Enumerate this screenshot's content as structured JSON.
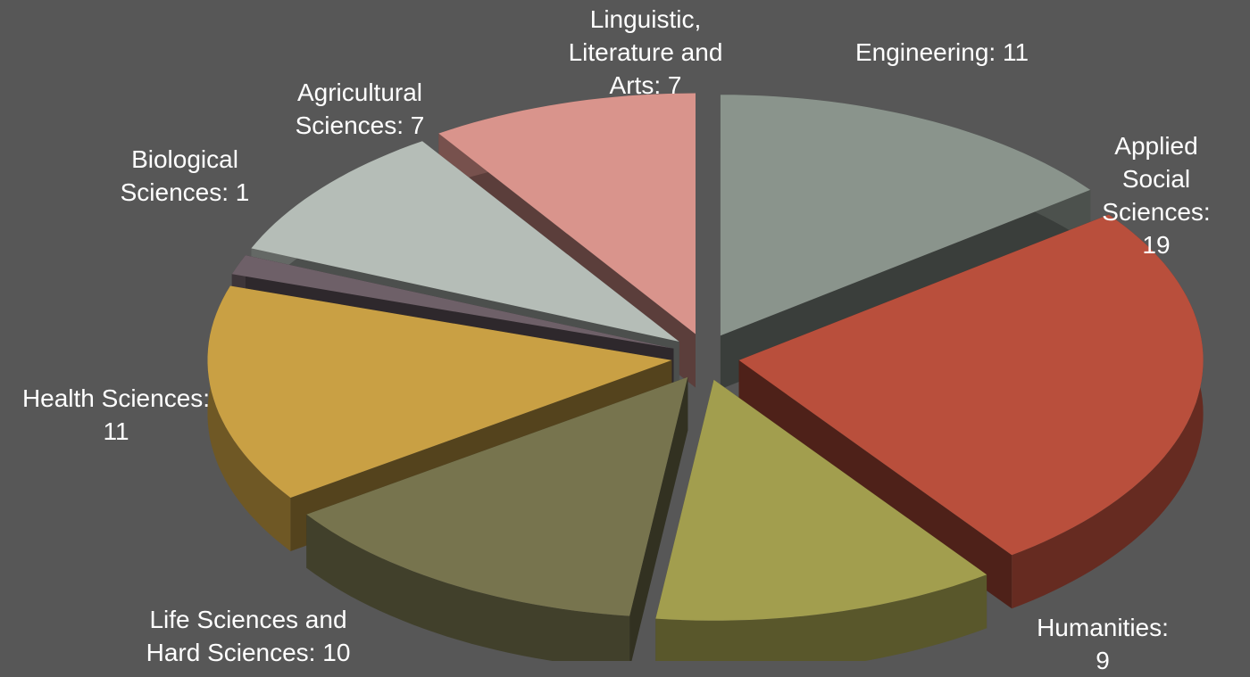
{
  "chart_data": {
    "type": "pie",
    "style": "3d-exploded",
    "values": [
      11,
      19,
      9,
      10,
      11,
      1,
      7,
      7
    ],
    "value_labels": [
      "Engineering: 11",
      "Applied Social\nSciences: 19",
      "Humanities: 9",
      "Life Sciences and\nHard Sciences: 10",
      "Health Sciences:\n11",
      "Biological\nSciences: 1",
      "Agricultural\nSciences: 7",
      "Linguistic,\nLiterature and\nArts: 7"
    ],
    "colors": [
      "#8a948c",
      "#b94f3c",
      "#a29e4e",
      "#77744e",
      "#c9a044",
      "#6e6068",
      "#b5bdb7",
      "#d9948c"
    ]
  }
}
